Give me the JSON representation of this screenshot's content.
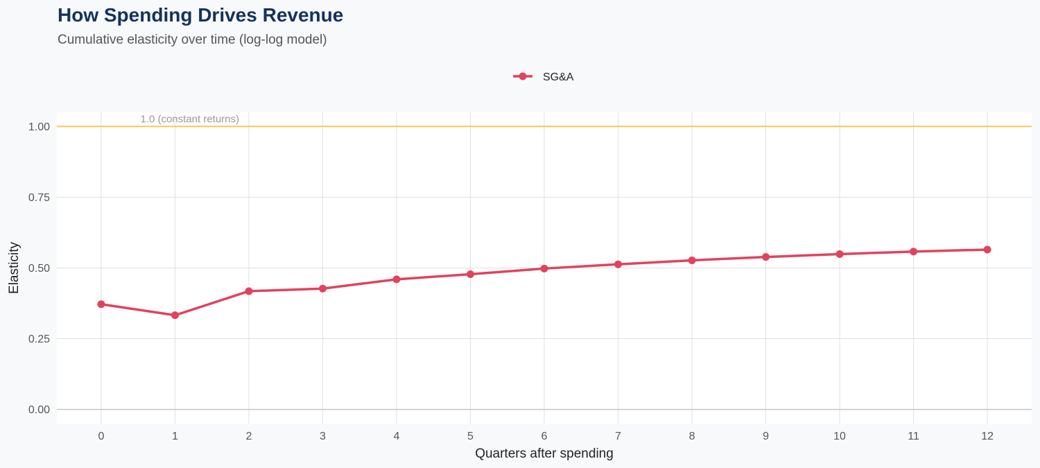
{
  "header": {
    "title": "How Spending Drives Revenue",
    "subtitle": "Cumulative elasticity over time (log-log model)"
  },
  "colors": {
    "series": "#e0435e",
    "reference_line": "#f2c94c",
    "grid": "#e0e0e0",
    "zero_line": "#c8c8c8",
    "panel": "#ffffff"
  },
  "chart_data": {
    "type": "line",
    "title": "How Spending Drives Revenue",
    "subtitle": "Cumulative elasticity over time (log-log model)",
    "xlabel": "Quarters after spending",
    "ylabel": "Elasticity",
    "x": [
      0,
      1,
      2,
      3,
      4,
      5,
      6,
      7,
      8,
      9,
      10,
      11,
      12
    ],
    "x_ticks": [
      "0",
      "1",
      "2",
      "3",
      "4",
      "5",
      "6",
      "7",
      "8",
      "9",
      "10",
      "11",
      "12"
    ],
    "y_ticks": [
      "0.00",
      "0.25",
      "0.50",
      "0.75",
      "1.00"
    ],
    "xlim": [
      -0.6,
      12.6
    ],
    "ylim": [
      -0.05,
      1.05
    ],
    "series": [
      {
        "name": "SG&A",
        "values": [
          0.372,
          0.333,
          0.418,
          0.427,
          0.46,
          0.478,
          0.498,
          0.513,
          0.527,
          0.539,
          0.549,
          0.558,
          0.565
        ]
      }
    ],
    "reference_line": {
      "y": 1.0,
      "label": "1.0 (constant returns)",
      "label_x": 1.2
    },
    "legend_position": "top-center",
    "grid": true
  }
}
